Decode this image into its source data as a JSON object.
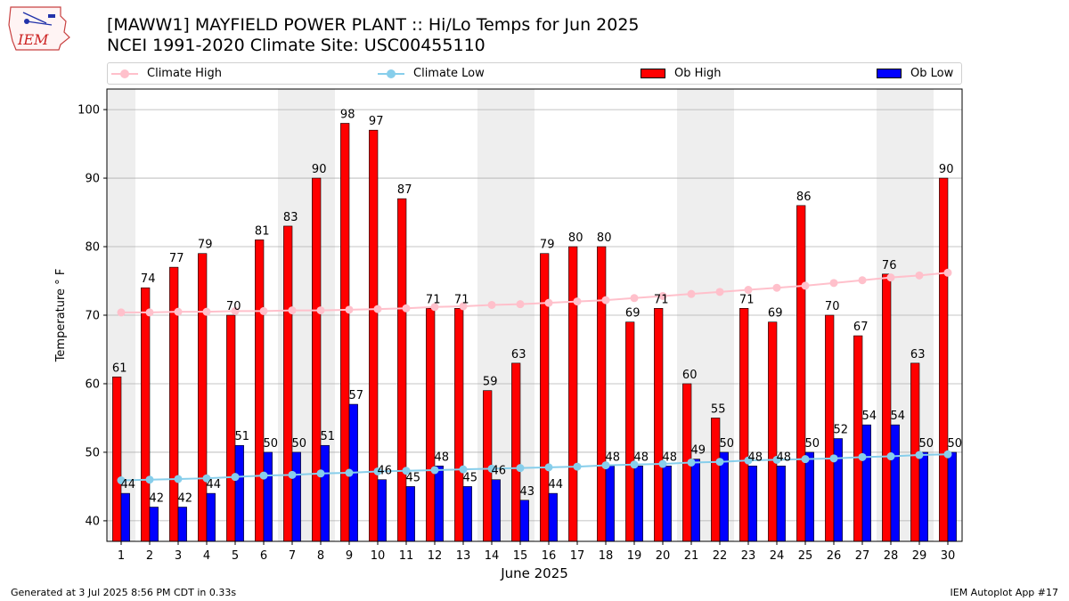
{
  "header": {
    "logo_text": "IEM",
    "title_line1": "[MAWW1] MAYFIELD POWER PLANT :: Hi/Lo Temps for Jun 2025",
    "title_line2": "NCEI 1991-2020 Climate Site: USC00455110"
  },
  "legend": {
    "climate_high": "Climate High",
    "climate_low": "Climate Low",
    "ob_high": "Ob High",
    "ob_low": "Ob Low"
  },
  "footer": {
    "generated": "Generated at 3 Jul 2025 8:56 PM CDT in 0.33s",
    "app": "IEM Autoplot App #17"
  },
  "colors": {
    "ob_high": "#ff0000",
    "ob_low": "#0000ff",
    "climate_high": "#ffc0cb",
    "climate_low": "#87ceeb",
    "weekend_shade": "#eeeeee",
    "grid": "#b0b0b0"
  },
  "chart_data": {
    "type": "bar",
    "xlabel": "June 2025",
    "ylabel": "Temperature ° F",
    "ylim": [
      37,
      103
    ],
    "yticks": [
      40,
      50,
      60,
      70,
      80,
      90,
      100
    ],
    "grid": "horizontal",
    "legend_position": "top",
    "categories": [
      "1",
      "2",
      "3",
      "4",
      "5",
      "6",
      "7",
      "8",
      "9",
      "10",
      "11",
      "12",
      "13",
      "14",
      "15",
      "16",
      "17",
      "18",
      "19",
      "20",
      "21",
      "22",
      "23",
      "24",
      "25",
      "26",
      "27",
      "28",
      "29",
      "30"
    ],
    "shaded_days": [
      1,
      7,
      8,
      14,
      15,
      21,
      22,
      28,
      29
    ],
    "series": [
      {
        "name": "Ob High",
        "kind": "bar",
        "values": [
          61,
          74,
          77,
          79,
          70,
          81,
          83,
          90,
          98,
          97,
          87,
          71,
          71,
          59,
          63,
          79,
          80,
          80,
          69,
          71,
          60,
          55,
          71,
          69,
          86,
          70,
          67,
          76,
          63,
          90
        ],
        "labels": [
          "61",
          "74",
          "77",
          "79",
          "70",
          "81",
          "83",
          "90",
          "98",
          "97",
          "87",
          "71",
          "71",
          "59",
          "63",
          "79",
          "80",
          "80",
          "69",
          "71",
          "60",
          "55",
          "71",
          "69",
          "86",
          "70",
          "67",
          "76",
          "63",
          "90"
        ]
      },
      {
        "name": "Ob Low",
        "kind": "bar",
        "values": [
          44,
          42,
          42,
          44,
          51,
          50,
          50,
          51,
          57,
          46,
          45,
          48,
          45,
          46,
          43,
          44,
          null,
          48,
          48,
          48,
          49,
          50,
          48,
          48,
          50,
          52,
          54,
          54,
          50,
          50
        ],
        "labels": [
          "44",
          "42",
          "42",
          "44",
          "51",
          "50",
          "50",
          "51",
          "57",
          "46",
          "45",
          "48",
          "45",
          "46",
          "43",
          "44",
          "",
          "48",
          "48",
          "48",
          "49",
          "50",
          "48",
          "48",
          "50",
          "52",
          "54",
          "54",
          "50",
          "50"
        ]
      },
      {
        "name": "Climate High",
        "kind": "line",
        "values": [
          70.4,
          70.4,
          70.5,
          70.5,
          70.6,
          70.6,
          70.7,
          70.7,
          70.8,
          70.9,
          71.0,
          71.2,
          71.3,
          71.5,
          71.6,
          71.8,
          72.0,
          72.2,
          72.5,
          72.8,
          73.1,
          73.4,
          73.7,
          74.0,
          74.3,
          74.7,
          75.1,
          75.5,
          75.8,
          76.2
        ]
      },
      {
        "name": "Climate Low",
        "kind": "line",
        "values": [
          45.9,
          46.0,
          46.1,
          46.2,
          46.4,
          46.6,
          46.7,
          46.9,
          47.0,
          47.2,
          47.3,
          47.4,
          47.5,
          47.6,
          47.7,
          47.8,
          47.9,
          48.1,
          48.2,
          48.3,
          48.5,
          48.6,
          48.8,
          48.9,
          49.0,
          49.1,
          49.3,
          49.4,
          49.6,
          49.7
        ]
      }
    ]
  }
}
